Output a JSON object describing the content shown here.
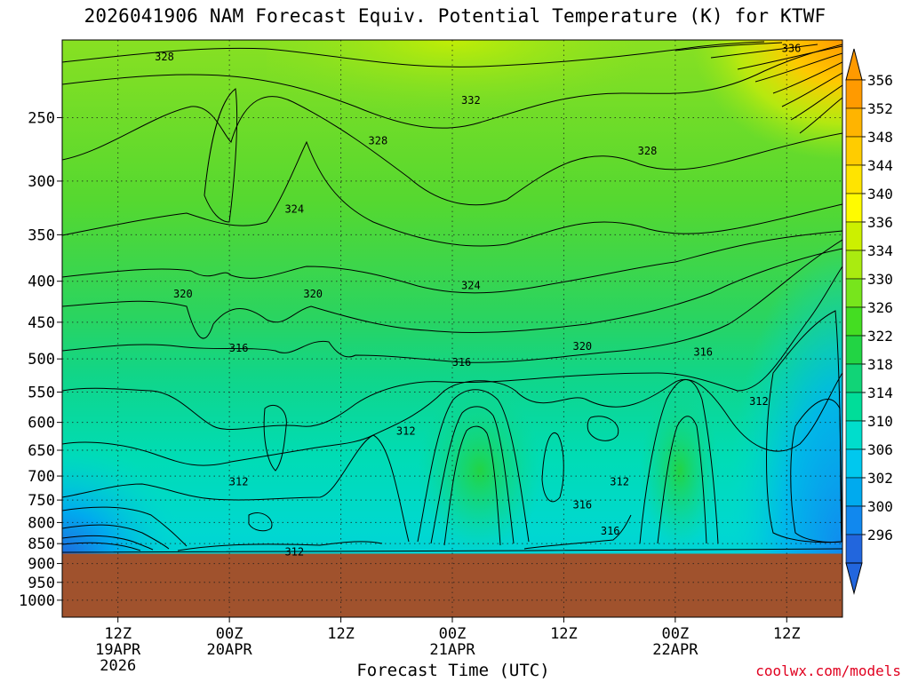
{
  "chart_data": {
    "type": "heatmap",
    "title": "2026041906 NAM Forecast Equiv. Potential Temperature (K) for KTWF",
    "xlabel": "Forecast Time (UTC)",
    "ylabel": "",
    "credit": "coolwx.com/models",
    "x_ticks": [
      {
        "hour": 6,
        "label": [
          "12Z",
          "19APR",
          "2026"
        ]
      },
      {
        "hour": 18,
        "label": [
          "00Z",
          "20APR"
        ]
      },
      {
        "hour": 30,
        "label": [
          "12Z"
        ]
      },
      {
        "hour": 42,
        "label": [
          "00Z",
          "21APR"
        ]
      },
      {
        "hour": 54,
        "label": [
          "12Z"
        ]
      },
      {
        "hour": 66,
        "label": [
          "00Z",
          "22APR"
        ]
      },
      {
        "hour": 78,
        "label": [
          "12Z"
        ]
      }
    ],
    "xlim_hours": [
      0,
      84
    ],
    "y_ticks": [
      "250",
      "300",
      "350",
      "400",
      "450",
      "500",
      "550",
      "600",
      "650",
      "700",
      "750",
      "800",
      "850",
      "900",
      "950",
      "1000"
    ],
    "y_tick_values": [
      250,
      300,
      350,
      400,
      450,
      500,
      550,
      600,
      650,
      700,
      750,
      800,
      850,
      900,
      950,
      1000
    ],
    "ylim_hpa": [
      200,
      1050
    ],
    "y_scale": "log-pressure",
    "grid": true,
    "colorbar": {
      "labels": [
        "356",
        "352",
        "348",
        "344",
        "340",
        "336",
        "334",
        "330",
        "326",
        "322",
        "318",
        "314",
        "310",
        "306",
        "302",
        "300",
        "296"
      ],
      "colors": [
        "#ff9a00",
        "#ffb400",
        "#ffcc00",
        "#ffe400",
        "#fffb00",
        "#ccf000",
        "#aaeb10",
        "#77e51c",
        "#44dd22",
        "#22d444",
        "#11d477",
        "#00dd99",
        "#00ddcc",
        "#00c8ee",
        "#00aaee",
        "#1188ee",
        "#2266dd"
      ]
    },
    "surface": {
      "color": "#a0522d",
      "pressure_hpa": 875
    },
    "contour_labels": [
      {
        "text": "336",
        "hour": 78.5,
        "p": 205
      },
      {
        "text": "328",
        "hour": 11,
        "p": 210
      },
      {
        "text": "332",
        "hour": 44,
        "p": 238
      },
      {
        "text": "328",
        "hour": 34,
        "p": 267
      },
      {
        "text": "328",
        "hour": 63,
        "p": 275
      },
      {
        "text": "324",
        "hour": 25,
        "p": 325
      },
      {
        "text": "324",
        "hour": 44,
        "p": 405
      },
      {
        "text": "320",
        "hour": 13,
        "p": 415
      },
      {
        "text": "320",
        "hour": 27,
        "p": 415
      },
      {
        "text": "316",
        "hour": 19,
        "p": 485
      },
      {
        "text": "320",
        "hour": 56,
        "p": 482
      },
      {
        "text": "316",
        "hour": 43,
        "p": 505
      },
      {
        "text": "316",
        "hour": 69,
        "p": 490
      },
      {
        "text": "312",
        "hour": 75,
        "p": 565
      },
      {
        "text": "312",
        "hour": 37,
        "p": 615
      },
      {
        "text": "312",
        "hour": 19,
        "p": 712
      },
      {
        "text": "312",
        "hour": 60,
        "p": 712
      },
      {
        "text": "316",
        "hour": 56,
        "p": 760
      },
      {
        "text": "316",
        "hour": 59,
        "p": 820
      },
      {
        "text": "312",
        "hour": 25,
        "p": 870
      }
    ]
  }
}
